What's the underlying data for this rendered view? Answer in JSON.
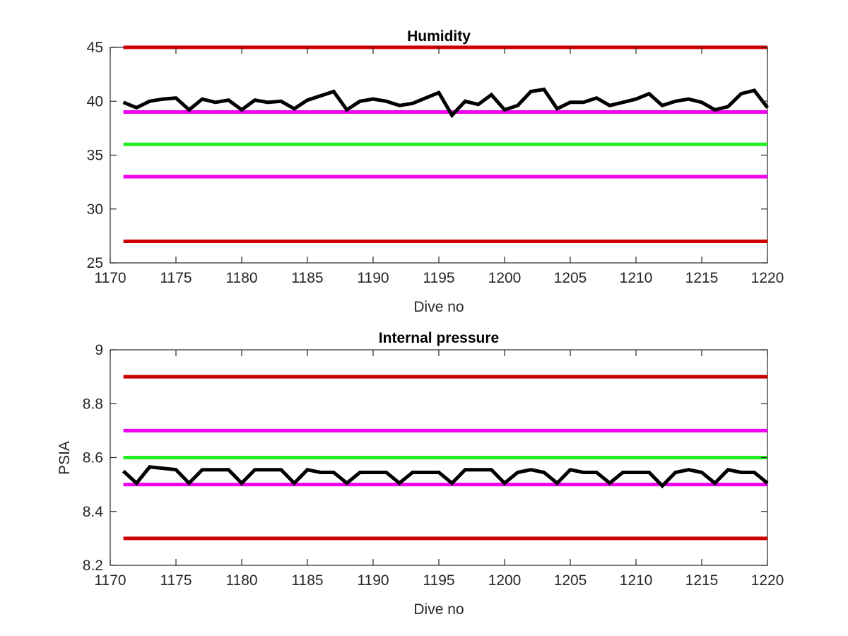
{
  "figure": {
    "background": "#ffffff"
  },
  "chart_data": [
    {
      "type": "line",
      "title": "Humidity",
      "xlabel": "Dive no",
      "ylabel": "",
      "xlim": [
        1170,
        1220
      ],
      "ylim": [
        25,
        45
      ],
      "xticks": [
        1170,
        1175,
        1180,
        1185,
        1190,
        1195,
        1200,
        1205,
        1210,
        1215,
        1220
      ],
      "yticks": [
        25,
        30,
        35,
        40,
        45
      ],
      "grid": false,
      "reference_lines": [
        {
          "y": 45,
          "color": "#cc0000"
        },
        {
          "y": 39,
          "color": "#ee00ee"
        },
        {
          "y": 36,
          "color": "#22ee22"
        },
        {
          "y": 33,
          "color": "#ee00ee"
        },
        {
          "y": 27,
          "color": "#cc0000"
        }
      ],
      "series": [
        {
          "color": "#000000",
          "x": [
            1171,
            1172,
            1173,
            1174,
            1175,
            1176,
            1177,
            1178,
            1179,
            1180,
            1181,
            1182,
            1183,
            1184,
            1185,
            1186,
            1187,
            1188,
            1189,
            1190,
            1191,
            1192,
            1193,
            1194,
            1195,
            1196,
            1197,
            1198,
            1199,
            1200,
            1201,
            1202,
            1203,
            1204,
            1205,
            1206,
            1207,
            1208,
            1209,
            1210,
            1211,
            1212,
            1213,
            1214,
            1215,
            1216,
            1217,
            1218,
            1219,
            1220
          ],
          "values": [
            39.9,
            39.4,
            40.0,
            40.2,
            40.3,
            39.2,
            40.2,
            39.9,
            40.1,
            39.2,
            40.1,
            39.9,
            40.0,
            39.3,
            40.1,
            40.5,
            40.9,
            39.2,
            40.0,
            40.2,
            40.0,
            39.6,
            39.8,
            40.3,
            40.8,
            38.7,
            40.0,
            39.7,
            40.6,
            39.2,
            39.6,
            40.9,
            41.1,
            39.3,
            39.9,
            39.9,
            40.3,
            39.6,
            39.9,
            40.2,
            40.7,
            39.6,
            40.0,
            40.2,
            39.9,
            39.2,
            39.5,
            40.7,
            41.0,
            39.4
          ]
        }
      ]
    },
    {
      "type": "line",
      "title": "Internal pressure",
      "xlabel": "Dive no",
      "ylabel": "PSIA",
      "xlim": [
        1170,
        1220
      ],
      "ylim": [
        8.2,
        9.0
      ],
      "xticks": [
        1170,
        1175,
        1180,
        1185,
        1190,
        1195,
        1200,
        1205,
        1210,
        1215,
        1220
      ],
      "yticks": [
        8.2,
        8.4,
        8.6,
        8.8,
        9
      ],
      "ytick_labels": [
        "8.2",
        "8.4",
        "8.6",
        "8.8",
        "9"
      ],
      "grid": false,
      "reference_lines": [
        {
          "y": 8.9,
          "color": "#cc0000"
        },
        {
          "y": 8.7,
          "color": "#ee00ee"
        },
        {
          "y": 8.6,
          "color": "#22ee22"
        },
        {
          "y": 8.5,
          "color": "#ee00ee"
        },
        {
          "y": 8.3,
          "color": "#cc0000"
        }
      ],
      "series": [
        {
          "color": "#000000",
          "x": [
            1171,
            1172,
            1173,
            1174,
            1175,
            1176,
            1177,
            1178,
            1179,
            1180,
            1181,
            1182,
            1183,
            1184,
            1185,
            1186,
            1187,
            1188,
            1189,
            1190,
            1191,
            1192,
            1193,
            1194,
            1195,
            1196,
            1197,
            1198,
            1199,
            1200,
            1201,
            1202,
            1203,
            1204,
            1205,
            1206,
            1207,
            1208,
            1209,
            1210,
            1211,
            1212,
            1213,
            1214,
            1215,
            1216,
            1217,
            1218,
            1219,
            1220
          ],
          "values": [
            8.55,
            8.505,
            8.565,
            8.56,
            8.555,
            8.505,
            8.555,
            8.555,
            8.555,
            8.505,
            8.555,
            8.555,
            8.555,
            8.505,
            8.555,
            8.545,
            8.545,
            8.505,
            8.545,
            8.545,
            8.545,
            8.505,
            8.545,
            8.545,
            8.545,
            8.505,
            8.555,
            8.555,
            8.555,
            8.505,
            8.545,
            8.555,
            8.545,
            8.505,
            8.555,
            8.545,
            8.545,
            8.505,
            8.545,
            8.545,
            8.545,
            8.495,
            8.545,
            8.555,
            8.545,
            8.505,
            8.555,
            8.545,
            8.545,
            8.505
          ]
        }
      ]
    }
  ]
}
